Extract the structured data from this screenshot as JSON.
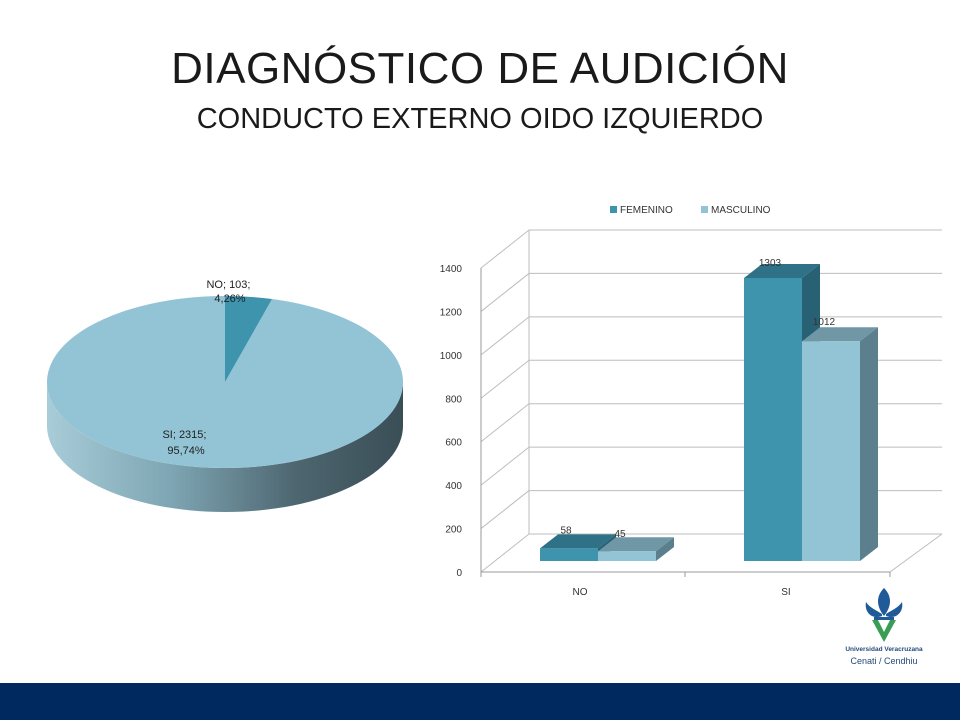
{
  "slide": {
    "title": "DIAGNÓSTICO DE AUDICIÓN",
    "subtitle": "CONDUCTO EXTERNO OIDO IZQUIERDO"
  },
  "logo": {
    "line1": "Universidad Veracruzana",
    "line2": "Cenati / Cendhiu",
    "icon": "fleur-de-lis-icon",
    "colors": {
      "blue": "#1f5a99",
      "green": "#3a9d55"
    }
  },
  "chart_data": [
    {
      "type": "pie",
      "style": "3d",
      "slices": [
        {
          "label": "NO",
          "value": 103,
          "percent": "4,26%",
          "display": "NO; 103; 4,26%",
          "color": "#3e93ad"
        },
        {
          "label": "SI",
          "value": 2315,
          "percent": "95,74%",
          "display": "SI; 2315; 95,74%",
          "color": "#93c4d5"
        }
      ]
    },
    {
      "type": "bar",
      "style": "3d-clustered",
      "categories": [
        "NO",
        "SI"
      ],
      "series": [
        {
          "name": "FEMENINO",
          "values": [
            58,
            1303
          ],
          "color": "#3e93ad"
        },
        {
          "name": "MASCULINO",
          "values": [
            45,
            1012
          ],
          "color": "#93c4d5"
        }
      ],
      "ylim": [
        0,
        1400
      ],
      "yticks": [
        0,
        200,
        400,
        600,
        800,
        1000,
        1200,
        1400
      ],
      "grid": true,
      "legend": "top"
    }
  ],
  "colors": {
    "footer": "#00295f",
    "title_text": "#1a1a1a"
  }
}
